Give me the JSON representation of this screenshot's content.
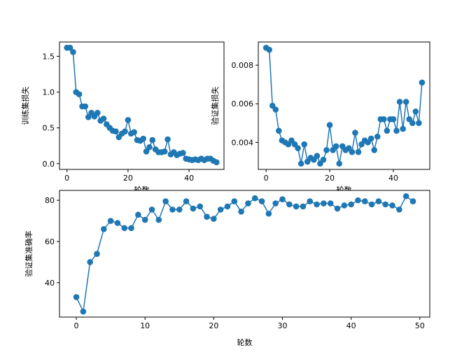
{
  "chart_data": [
    {
      "type": "line",
      "xlabel": "轮数",
      "ylabel": "训练集损失",
      "xlim": [
        -2.45,
        51.45
      ],
      "ylim": [
        -0.08,
        1.7
      ],
      "xticks": [
        0,
        20,
        40
      ],
      "yticks": [
        0.0,
        0.5,
        1.0,
        1.5
      ],
      "ytick_labels": [
        "0.0",
        "0.5",
        "1.0",
        "1.5"
      ],
      "color": "#1f77b4",
      "marker": "circle",
      "grid": false,
      "series": [
        {
          "x": [
            0,
            1,
            2,
            3,
            4,
            5,
            6,
            7,
            8,
            9,
            10,
            11,
            12,
            13,
            14,
            15,
            16,
            17,
            18,
            19,
            20,
            21,
            22,
            23,
            24,
            25,
            26,
            27,
            28,
            29,
            30,
            31,
            32,
            33,
            34,
            35,
            36,
            37,
            38,
            39,
            40,
            41,
            42,
            43,
            44,
            45,
            46,
            47,
            48,
            49
          ],
          "values": [
            1.62,
            1.62,
            1.56,
            1.0,
            0.97,
            0.8,
            0.8,
            0.65,
            0.71,
            0.66,
            0.71,
            0.6,
            0.63,
            0.55,
            0.5,
            0.46,
            0.45,
            0.37,
            0.42,
            0.45,
            0.61,
            0.42,
            0.44,
            0.33,
            0.32,
            0.35,
            0.17,
            0.23,
            0.33,
            0.2,
            0.16,
            0.16,
            0.17,
            0.34,
            0.13,
            0.16,
            0.12,
            0.14,
            0.15,
            0.07,
            0.06,
            0.05,
            0.06,
            0.05,
            0.07,
            0.05,
            0.07,
            0.07,
            0.04,
            0.02
          ]
        }
      ]
    },
    {
      "type": "line",
      "xlabel": "轮数",
      "ylabel": "验证集损失",
      "xlim": [
        -2.45,
        51.45
      ],
      "ylim": [
        0.0026,
        0.0092
      ],
      "xticks": [
        0,
        20,
        40
      ],
      "yticks": [
        0.004,
        0.006,
        0.008
      ],
      "ytick_labels": [
        "0.004",
        "0.006",
        "0.008"
      ],
      "color": "#1f77b4",
      "marker": "circle",
      "grid": false,
      "series": [
        {
          "x": [
            0,
            1,
            2,
            3,
            4,
            5,
            6,
            7,
            8,
            9,
            10,
            11,
            12,
            13,
            14,
            15,
            16,
            17,
            18,
            19,
            20,
            21,
            22,
            23,
            24,
            25,
            26,
            27,
            28,
            29,
            30,
            31,
            32,
            33,
            34,
            35,
            36,
            37,
            38,
            39,
            40,
            41,
            42,
            43,
            44,
            45,
            46,
            47,
            48,
            49
          ],
          "values": [
            0.0089,
            0.0088,
            0.0059,
            0.0057,
            0.0046,
            0.0041,
            0.004,
            0.0039,
            0.0041,
            0.0039,
            0.0037,
            0.0029,
            0.0039,
            0.003,
            0.0032,
            0.0031,
            0.0033,
            0.0029,
            0.0031,
            0.0036,
            0.0049,
            0.0036,
            0.0038,
            0.0029,
            0.0038,
            0.0036,
            0.0037,
            0.0035,
            0.0045,
            0.0035,
            0.0039,
            0.0041,
            0.004,
            0.0042,
            0.0036,
            0.0043,
            0.0052,
            0.0052,
            0.0046,
            0.0052,
            0.0052,
            0.0046,
            0.0061,
            0.0047,
            0.0061,
            0.0052,
            0.005,
            0.0056,
            0.005,
            0.0071
          ]
        }
      ]
    },
    {
      "type": "line",
      "xlabel": "轮数",
      "ylabel": "验证集准确率",
      "xlim": [
        -2.45,
        51.45
      ],
      "ylim": [
        23.3,
        84.8
      ],
      "xticks": [
        0,
        10,
        20,
        30,
        40,
        50
      ],
      "yticks": [
        40,
        60,
        80
      ],
      "ytick_labels": [
        "40",
        "60",
        "80"
      ],
      "color": "#1f77b4",
      "marker": "circle",
      "grid": false,
      "series": [
        {
          "x": [
            0,
            1,
            2,
            3,
            4,
            5,
            6,
            7,
            8,
            9,
            10,
            11,
            12,
            13,
            14,
            15,
            16,
            17,
            18,
            19,
            20,
            21,
            22,
            23,
            24,
            25,
            26,
            27,
            28,
            29,
            30,
            31,
            32,
            33,
            34,
            35,
            36,
            37,
            38,
            39,
            40,
            41,
            42,
            43,
            44,
            45,
            46,
            47,
            48,
            49
          ],
          "values": [
            33,
            26,
            50,
            54,
            66,
            70,
            69,
            66.5,
            66.5,
            73,
            70.5,
            75.5,
            70.5,
            79.5,
            75.5,
            75.5,
            79.5,
            76,
            77,
            72,
            71,
            75.5,
            77,
            79.5,
            74.5,
            78.5,
            81,
            79.5,
            73.5,
            78.5,
            80.5,
            78,
            77,
            77,
            79.5,
            78,
            78.5,
            78.5,
            76,
            77.5,
            78,
            80,
            79.5,
            78,
            79.5,
            78,
            77.5,
            75.5,
            82,
            79.5
          ]
        }
      ]
    }
  ]
}
